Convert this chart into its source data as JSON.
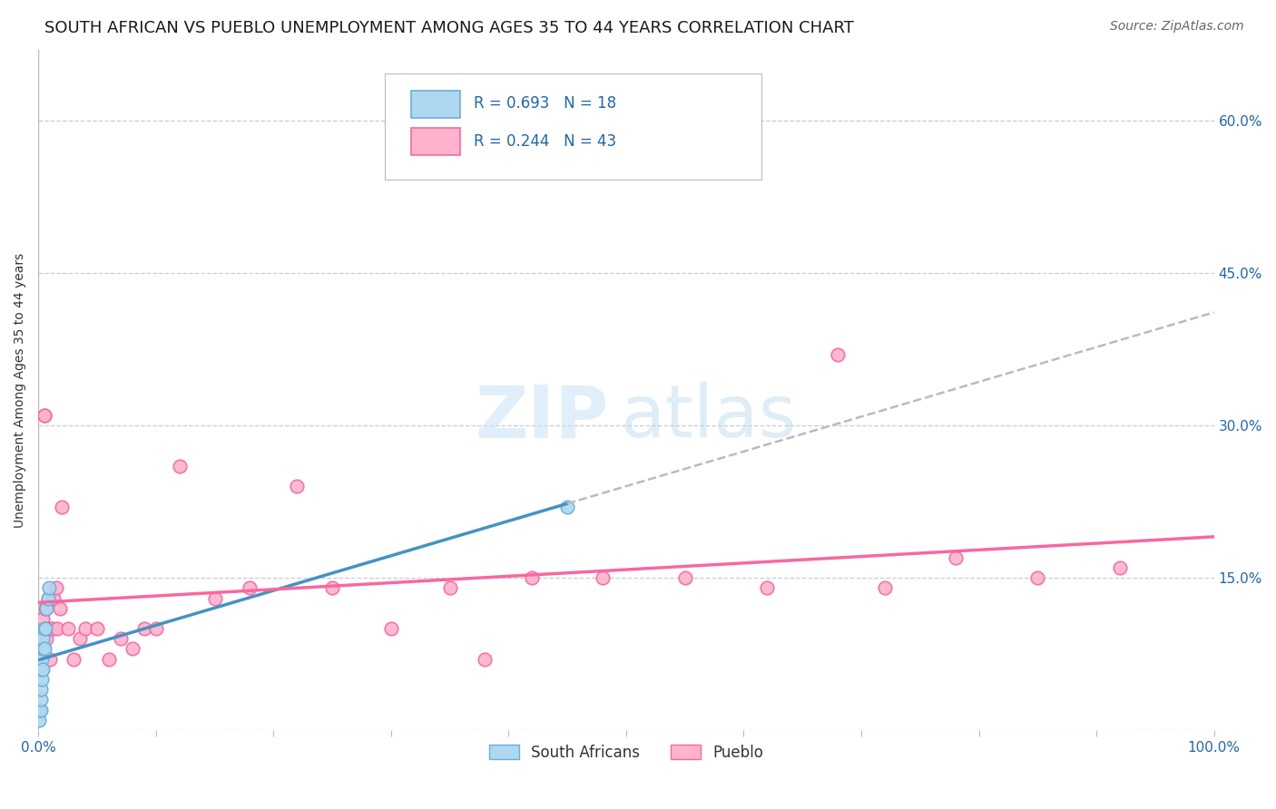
{
  "title": "SOUTH AFRICAN VS PUEBLO UNEMPLOYMENT AMONG AGES 35 TO 44 YEARS CORRELATION CHART",
  "source_text": "Source: ZipAtlas.com",
  "ylabel": "Unemployment Among Ages 35 to 44 years",
  "background_color": "#ffffff",
  "plot_bg_color": "#ffffff",
  "south_african_x": [
    0.001,
    0.001,
    0.002,
    0.002,
    0.002,
    0.003,
    0.003,
    0.003,
    0.004,
    0.004,
    0.004,
    0.005,
    0.005,
    0.006,
    0.007,
    0.008,
    0.009,
    0.45
  ],
  "south_african_y": [
    0.01,
    0.02,
    0.02,
    0.03,
    0.04,
    0.05,
    0.06,
    0.07,
    0.06,
    0.08,
    0.09,
    0.08,
    0.1,
    0.1,
    0.12,
    0.13,
    0.14,
    0.22
  ],
  "pueblo_x": [
    0.003,
    0.004,
    0.005,
    0.005,
    0.006,
    0.007,
    0.008,
    0.009,
    0.01,
    0.01,
    0.012,
    0.013,
    0.015,
    0.016,
    0.018,
    0.02,
    0.025,
    0.03,
    0.035,
    0.04,
    0.05,
    0.06,
    0.07,
    0.08,
    0.09,
    0.1,
    0.12,
    0.15,
    0.18,
    0.22,
    0.25,
    0.3,
    0.35,
    0.38,
    0.42,
    0.48,
    0.55,
    0.62,
    0.68,
    0.72,
    0.78,
    0.85,
    0.92
  ],
  "pueblo_y": [
    0.12,
    0.11,
    0.31,
    0.31,
    0.12,
    0.09,
    0.13,
    0.1,
    0.07,
    0.1,
    0.1,
    0.13,
    0.14,
    0.1,
    0.12,
    0.22,
    0.1,
    0.07,
    0.09,
    0.1,
    0.1,
    0.07,
    0.09,
    0.08,
    0.1,
    0.1,
    0.26,
    0.13,
    0.14,
    0.24,
    0.14,
    0.1,
    0.14,
    0.07,
    0.15,
    0.15,
    0.15,
    0.14,
    0.37,
    0.14,
    0.17,
    0.15,
    0.16
  ],
  "sa_R": 0.693,
  "sa_N": 18,
  "pueblo_R": 0.244,
  "pueblo_N": 43,
  "sa_scatter_color": "#add8f0",
  "sa_edge_color": "#6baed6",
  "pueblo_scatter_color": "#ffb3cc",
  "pueblo_edge_color": "#f768a1",
  "sa_line_color": "#4393c3",
  "pueblo_line_color": "#f768a1",
  "trend_dash_color": "#bbbbbb",
  "xlim": [
    0.0,
    1.0
  ],
  "ylim": [
    0.0,
    0.67
  ],
  "x_ticks": [
    0.0,
    0.1,
    0.2,
    0.3,
    0.4,
    0.5,
    0.6,
    0.7,
    0.8,
    0.9,
    1.0
  ],
  "y_ticks": [
    0.0,
    0.15,
    0.3,
    0.45,
    0.6
  ],
  "y_tick_labels_right": [
    "",
    "15.0%",
    "30.0%",
    "45.0%",
    "60.0%"
  ],
  "grid_color": "#cccccc",
  "grid_style": "--",
  "title_fontsize": 13,
  "label_fontsize": 10,
  "tick_fontsize": 11,
  "legend_fontsize": 12,
  "source_fontsize": 10
}
